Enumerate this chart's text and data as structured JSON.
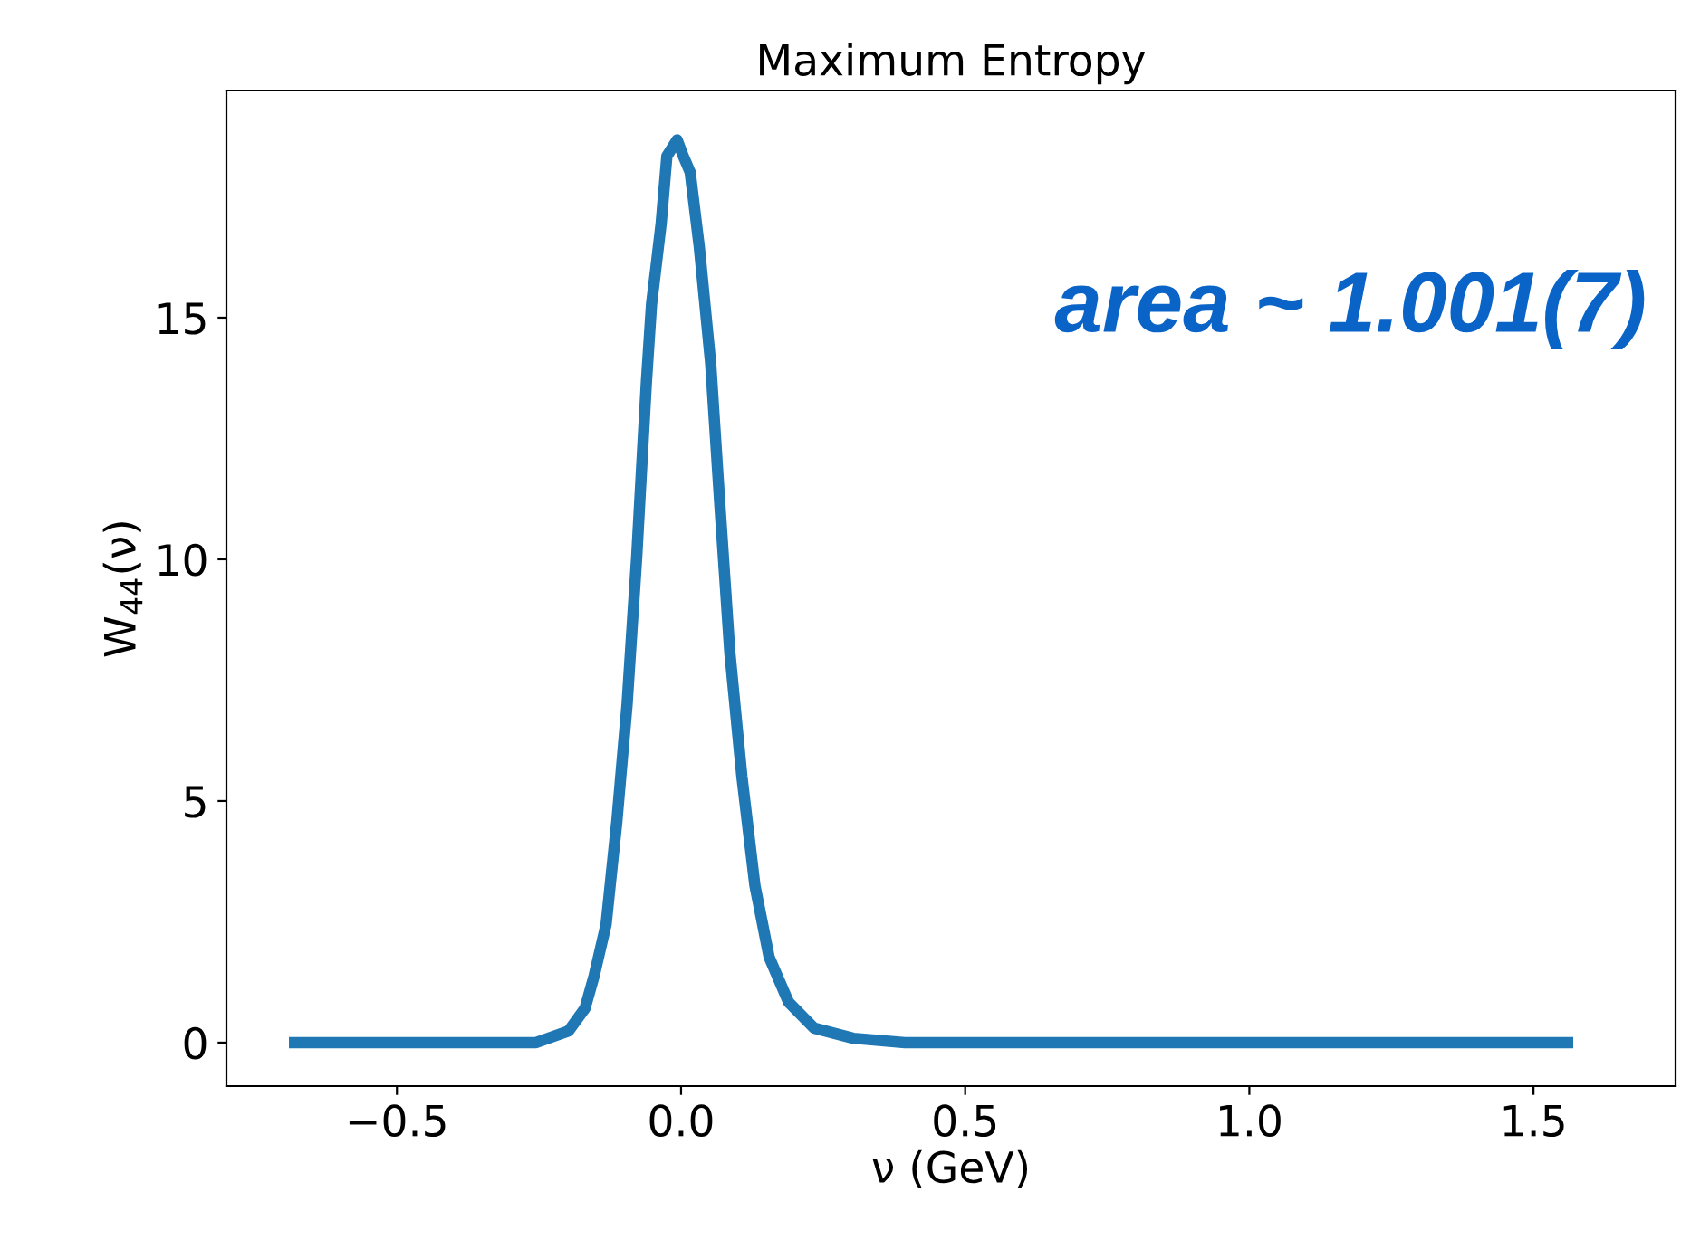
{
  "chart_data": {
    "type": "line",
    "title": "Maximum Entropy",
    "xlabel": "ν (GeV)",
    "ylabel": "W$_{44}$(ν)",
    "annotations": [
      "area ~ 1.001(7)"
    ],
    "series": [
      {
        "color": "#1f77b4",
        "x": [
          -0.68,
          -0.255,
          -0.198,
          -0.169,
          -0.153,
          -0.132,
          -0.113,
          -0.095,
          -0.078,
          -0.061,
          -0.052,
          -0.035,
          -0.025,
          -0.007,
          0.004,
          0.016,
          0.032,
          0.052,
          0.069,
          0.086,
          0.107,
          0.13,
          0.155,
          0.189,
          0.234,
          0.303,
          0.394,
          1.56
        ],
        "values": [
          0,
          0,
          0.24,
          0.71,
          1.38,
          2.44,
          4.58,
          7.0,
          10.06,
          13.67,
          15.27,
          16.95,
          18.34,
          18.68,
          18.34,
          18.01,
          16.47,
          14.07,
          11.0,
          8.05,
          5.51,
          3.25,
          1.77,
          0.84,
          0.3,
          0.09,
          0,
          0
        ]
      }
    ],
    "xlim": [
      -0.8,
      1.75
    ],
    "ylim": [
      -0.9,
      19.7
    ],
    "xticks": [
      {
        "value": -0.5,
        "label": "−0.5"
      },
      {
        "value": 0.0,
        "label": "0.0"
      },
      {
        "value": 0.5,
        "label": "0.5"
      },
      {
        "value": 1.0,
        "label": "1.0"
      },
      {
        "value": 1.5,
        "label": "1.5"
      }
    ],
    "yticks": [
      0,
      5,
      10,
      15
    ],
    "grid": false,
    "legend": false
  }
}
